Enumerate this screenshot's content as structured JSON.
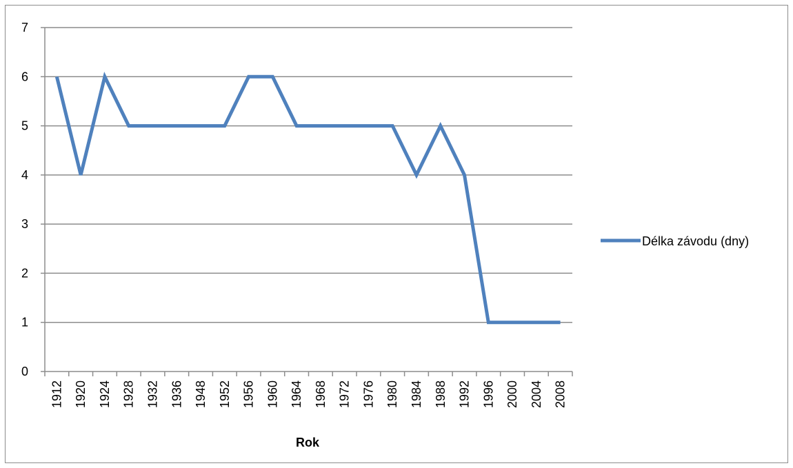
{
  "chart_data": {
    "type": "line",
    "title": "",
    "xlabel": "Rok",
    "ylabel": "",
    "categories": [
      "1912",
      "1920",
      "1924",
      "1928",
      "1932",
      "1936",
      "1948",
      "1952",
      "1956",
      "1960",
      "1964",
      "1968",
      "1972",
      "1976",
      "1980",
      "1984",
      "1988",
      "1992",
      "1996",
      "2000",
      "2004",
      "2008"
    ],
    "series": [
      {
        "name": "Délka závodu (dny)",
        "color": "#4f81bd",
        "values": [
          6,
          4,
          6,
          5,
          5,
          5,
          5,
          5,
          6,
          6,
          5,
          5,
          5,
          5,
          5,
          4,
          5,
          4,
          1,
          1,
          1,
          1
        ]
      }
    ],
    "ylim": [
      0,
      7
    ],
    "yticks": [
      0,
      1,
      2,
      3,
      4,
      5,
      6,
      7
    ],
    "grid": true,
    "legend_position": "right"
  }
}
